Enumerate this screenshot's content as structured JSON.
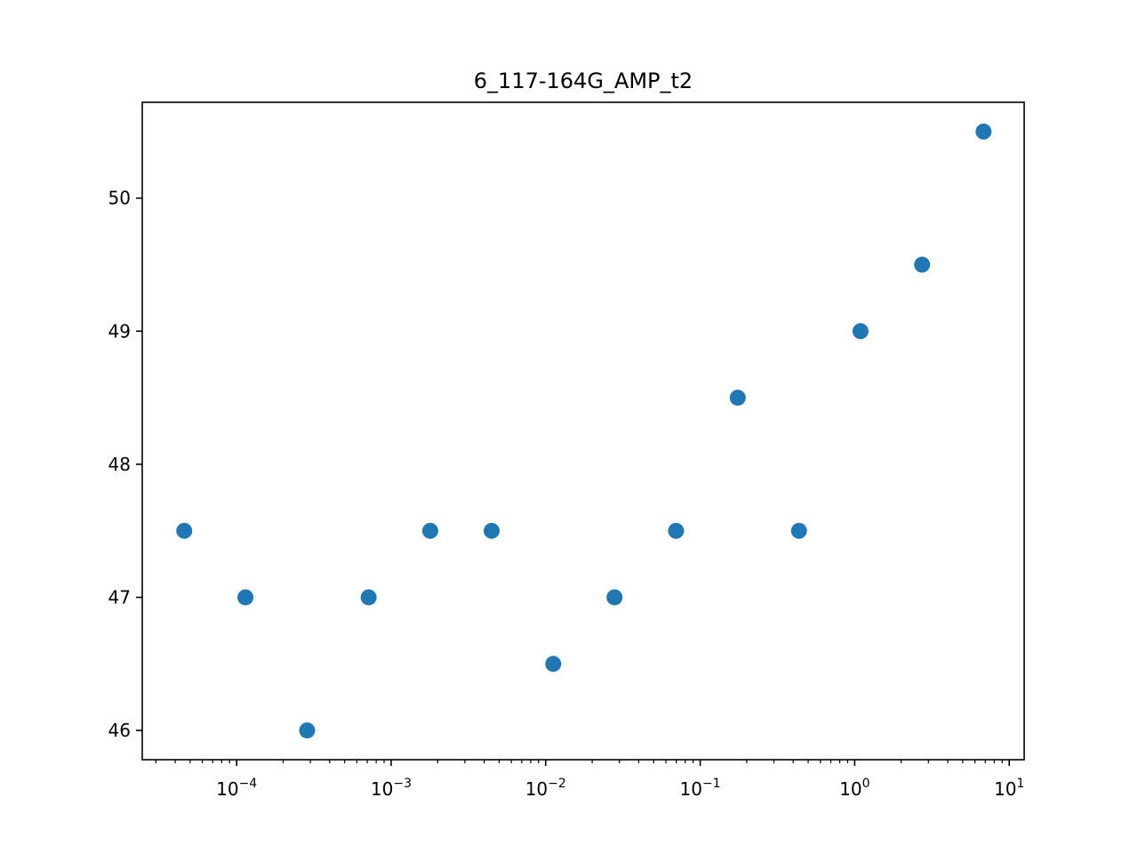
{
  "chart_data": {
    "type": "scatter",
    "title": "6_117-164G_AMP_t2",
    "xlabel": "",
    "ylabel": "",
    "xscale": "log",
    "xlim": [
      2.45e-05,
      12.5
    ],
    "ylim": [
      45.78,
      50.72
    ],
    "x_ticks": [
      {
        "value": 0.0001,
        "base": "10",
        "exp": "−4"
      },
      {
        "value": 0.001,
        "base": "10",
        "exp": "−3"
      },
      {
        "value": 0.01,
        "base": "10",
        "exp": "−2"
      },
      {
        "value": 0.1,
        "base": "10",
        "exp": "−1"
      },
      {
        "value": 1,
        "base": "10",
        "exp": "0"
      },
      {
        "value": 10,
        "base": "10",
        "exp": "1"
      }
    ],
    "y_ticks": [
      {
        "value": 46,
        "label": "46"
      },
      {
        "value": 47,
        "label": "47"
      },
      {
        "value": 48,
        "label": "48"
      },
      {
        "value": 49,
        "label": "49"
      },
      {
        "value": 50,
        "label": "50"
      }
    ],
    "grid": false,
    "marker_color": "#1f77b4",
    "series": [
      {
        "points": [
          {
            "x": 4.58e-05,
            "y": 47.5
          },
          {
            "x": 0.000114,
            "y": 47.0
          },
          {
            "x": 0.000286,
            "y": 46.0
          },
          {
            "x": 0.000715,
            "y": 47.0
          },
          {
            "x": 0.00179,
            "y": 47.5
          },
          {
            "x": 0.00447,
            "y": 47.5
          },
          {
            "x": 0.0112,
            "y": 46.5
          },
          {
            "x": 0.0279,
            "y": 47.0
          },
          {
            "x": 0.0698,
            "y": 47.5
          },
          {
            "x": 0.175,
            "y": 48.5
          },
          {
            "x": 0.436,
            "y": 47.5
          },
          {
            "x": 1.09,
            "y": 49.0
          },
          {
            "x": 2.73,
            "y": 49.5
          },
          {
            "x": 6.82,
            "y": 50.5
          }
        ]
      }
    ]
  }
}
